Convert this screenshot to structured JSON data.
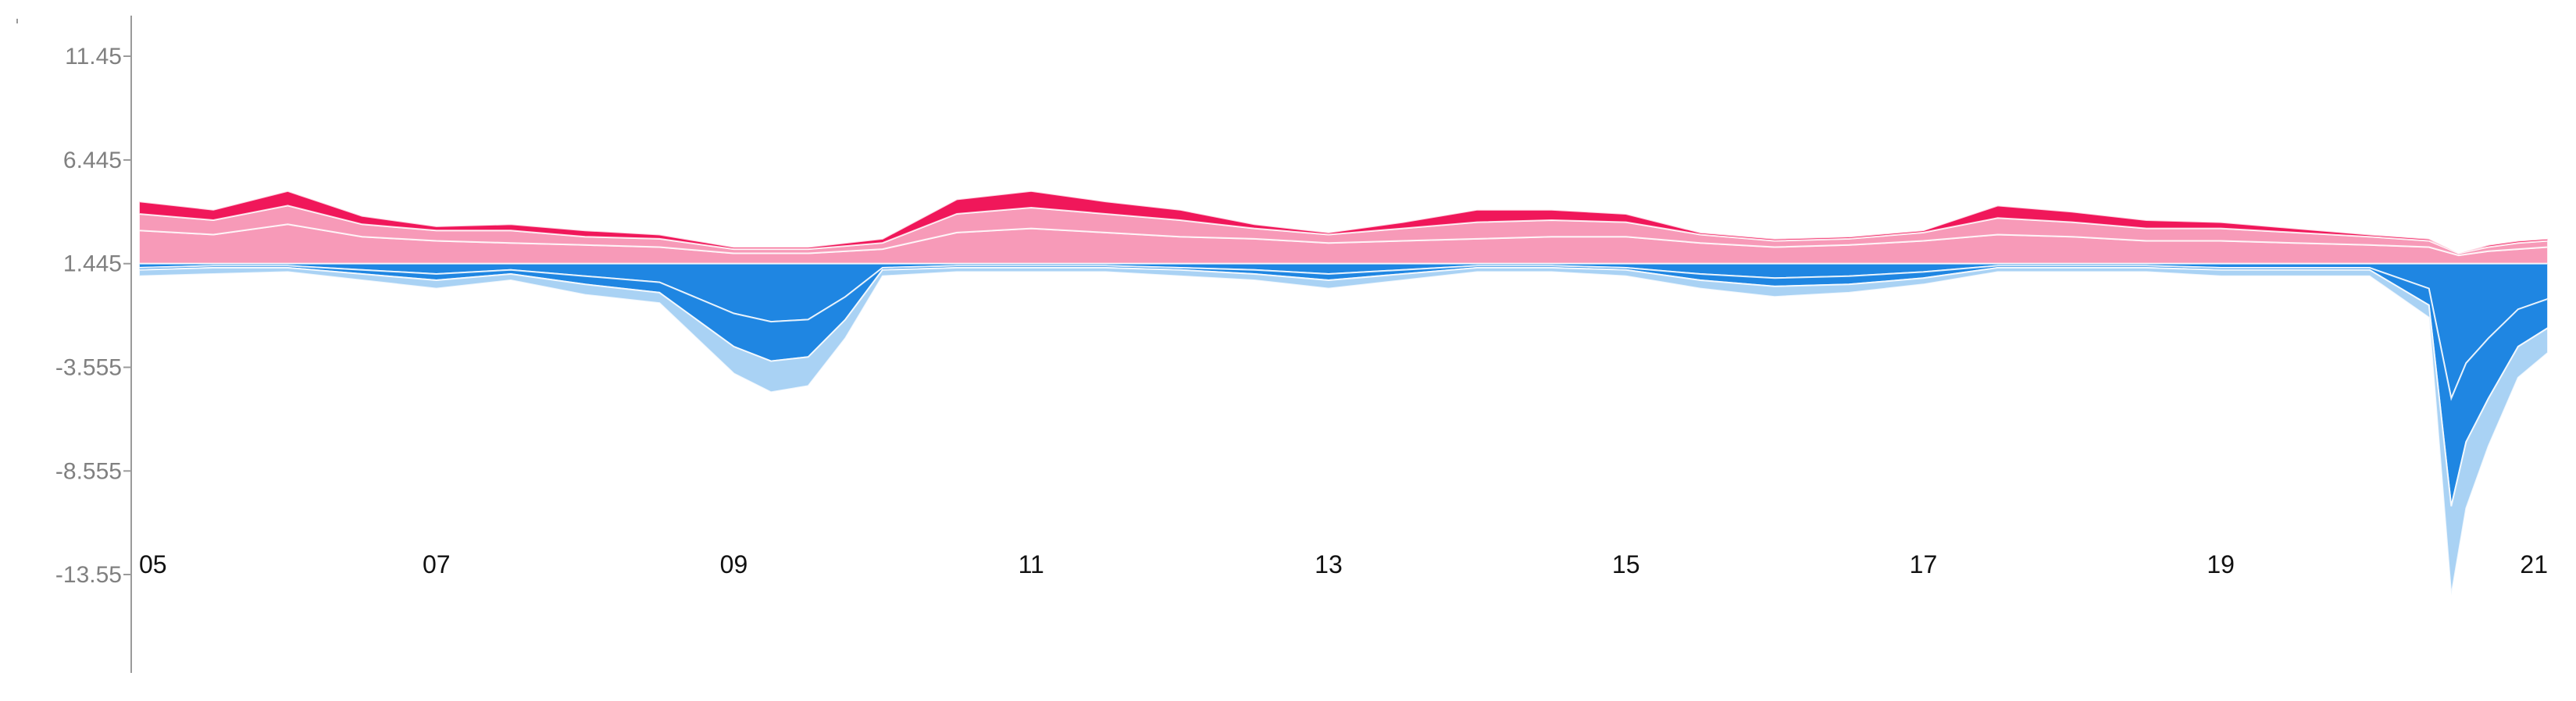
{
  "chart_data": {
    "type": "area",
    "title": "",
    "xlabel": "",
    "ylabel": "",
    "stacked": true,
    "x_tick_labels": [
      "05",
      "07",
      "09",
      "11",
      "13",
      "15",
      "17",
      "19",
      "21"
    ],
    "x_tick_values": [
      5,
      7,
      9,
      11,
      13,
      15,
      17,
      19,
      21
    ],
    "y_tick_labels": [
      "11.45",
      "6.445",
      "1.445",
      "-3.555",
      "-8.555",
      "-13.55"
    ],
    "y_tick_values": [
      11.45,
      6.445,
      1.445,
      -3.555,
      -8.555,
      -13.55
    ],
    "xlim": [
      5,
      21.2
    ],
    "ylim": [
      -15.8,
      13.2
    ],
    "grid": false,
    "legend": "none",
    "colors": {
      "positive_dark": "#f0175a",
      "positive_light": "#f79ab8",
      "negative_dark": "#1f86e2",
      "negative_light": "#a9d2f4",
      "layer_separator": "#ffffff",
      "axis": "#9a9a9a"
    },
    "series": [
      {
        "sign": "positive",
        "x": [
          5.0,
          5.5,
          6.0,
          6.5,
          7.0,
          7.5,
          8.0,
          8.5,
          9.0,
          9.5,
          10.0,
          10.5,
          11.0,
          11.5,
          12.0,
          12.5,
          13.0,
          13.5,
          14.0,
          14.5,
          15.0,
          15.5,
          16.0,
          16.5,
          17.0,
          17.5,
          18.0,
          18.5,
          19.0,
          19.5,
          20.0,
          20.4,
          20.6,
          20.8,
          21.0,
          21.2
        ],
        "values": [
          1.6,
          1.4,
          1.9,
          1.3,
          1.1,
          1.0,
          0.9,
          0.8,
          0.5,
          0.5,
          0.7,
          1.5,
          1.7,
          1.5,
          1.3,
          1.2,
          1.0,
          1.1,
          1.2,
          1.3,
          1.3,
          1.0,
          0.8,
          0.9,
          1.1,
          1.4,
          1.3,
          1.1,
          1.1,
          1.0,
          0.9,
          0.8,
          0.4,
          0.6,
          0.7,
          0.8
        ]
      },
      {
        "sign": "positive",
        "x": [
          5.0,
          5.5,
          6.0,
          6.5,
          7.0,
          7.5,
          8.0,
          8.5,
          9.0,
          9.5,
          10.0,
          10.5,
          11.0,
          11.5,
          12.0,
          12.5,
          13.0,
          13.5,
          14.0,
          14.5,
          15.0,
          15.5,
          16.0,
          16.5,
          17.0,
          17.5,
          18.0,
          18.5,
          19.0,
          19.5,
          20.0,
          20.4,
          20.6,
          20.8,
          21.0,
          21.2
        ],
        "values": [
          0.8,
          0.7,
          0.9,
          0.6,
          0.5,
          0.6,
          0.4,
          0.4,
          0.2,
          0.2,
          0.3,
          0.9,
          1.0,
          0.9,
          0.8,
          0.5,
          0.4,
          0.6,
          0.8,
          0.8,
          0.7,
          0.4,
          0.3,
          0.3,
          0.4,
          0.8,
          0.7,
          0.6,
          0.6,
          0.5,
          0.4,
          0.3,
          0.1,
          0.2,
          0.3,
          0.3
        ]
      },
      {
        "sign": "positive",
        "x": [
          5.0,
          5.5,
          6.0,
          6.5,
          7.0,
          7.5,
          8.0,
          8.5,
          9.0,
          9.5,
          10.0,
          10.5,
          11.0,
          11.5,
          12.0,
          12.5,
          13.0,
          13.5,
          14.0,
          14.5,
          15.0,
          15.5,
          16.0,
          16.5,
          17.0,
          17.5,
          18.0,
          18.5,
          19.0,
          19.5,
          20.0,
          20.4,
          20.6,
          20.8,
          21.0,
          21.2
        ],
        "values": [
          0.6,
          0.5,
          0.7,
          0.4,
          0.2,
          0.3,
          0.3,
          0.2,
          0.1,
          0.1,
          0.2,
          0.7,
          0.8,
          0.6,
          0.5,
          0.2,
          0.1,
          0.3,
          0.6,
          0.5,
          0.4,
          0.1,
          0.1,
          0.1,
          0.1,
          0.6,
          0.5,
          0.4,
          0.3,
          0.2,
          0.1,
          0.1,
          0.0,
          0.1,
          0.1,
          0.1
        ]
      },
      {
        "sign": "negative",
        "x": [
          5.0,
          5.5,
          6.0,
          6.5,
          7.0,
          7.5,
          8.0,
          8.5,
          9.0,
          9.25,
          9.5,
          9.75,
          10.0,
          10.5,
          11.0,
          11.5,
          12.0,
          12.5,
          13.0,
          13.5,
          14.0,
          14.5,
          15.0,
          15.5,
          16.0,
          16.5,
          17.0,
          17.5,
          18.0,
          18.5,
          19.0,
          19.5,
          20.0,
          20.4,
          20.55,
          20.65,
          20.8,
          21.0,
          21.2
        ],
        "values": [
          -0.2,
          -0.1,
          -0.1,
          -0.3,
          -0.5,
          -0.3,
          -0.6,
          -0.9,
          -2.4,
          -2.8,
          -2.7,
          -1.6,
          -0.2,
          -0.1,
          -0.1,
          -0.1,
          -0.2,
          -0.3,
          -0.5,
          -0.3,
          -0.1,
          -0.1,
          -0.2,
          -0.5,
          -0.7,
          -0.6,
          -0.4,
          -0.1,
          -0.1,
          -0.1,
          -0.2,
          -0.2,
          -0.2,
          -1.2,
          -6.5,
          -4.8,
          -3.6,
          -2.2,
          -1.7
        ]
      },
      {
        "sign": "negative",
        "x": [
          5.0,
          5.5,
          6.0,
          6.5,
          7.0,
          7.5,
          8.0,
          8.5,
          9.0,
          9.25,
          9.5,
          9.75,
          10.0,
          10.5,
          11.0,
          11.5,
          12.0,
          12.5,
          13.0,
          13.5,
          14.0,
          14.5,
          15.0,
          15.5,
          16.0,
          16.5,
          17.0,
          17.5,
          18.0,
          18.5,
          19.0,
          19.5,
          20.0,
          20.4,
          20.55,
          20.65,
          20.8,
          21.0,
          21.2
        ],
        "values": [
          -0.1,
          -0.1,
          -0.1,
          -0.2,
          -0.3,
          -0.2,
          -0.4,
          -0.5,
          -1.6,
          -1.9,
          -1.8,
          -1.1,
          -0.1,
          -0.1,
          -0.1,
          -0.1,
          -0.1,
          -0.2,
          -0.3,
          -0.2,
          -0.1,
          -0.1,
          -0.1,
          -0.3,
          -0.4,
          -0.4,
          -0.3,
          -0.1,
          -0.1,
          -0.1,
          -0.1,
          -0.1,
          -0.1,
          -0.8,
          -5.2,
          -3.8,
          -2.9,
          -1.8,
          -1.4
        ]
      },
      {
        "sign": "negative",
        "x": [
          5.0,
          5.5,
          6.0,
          6.5,
          7.0,
          7.5,
          8.0,
          8.5,
          9.0,
          9.25,
          9.5,
          9.75,
          10.0,
          10.5,
          11.0,
          11.5,
          12.0,
          12.5,
          13.0,
          13.5,
          14.0,
          14.5,
          15.0,
          15.5,
          16.0,
          16.5,
          17.0,
          17.5,
          18.0,
          18.5,
          19.0,
          19.5,
          20.0,
          20.4,
          20.55,
          20.65,
          20.8,
          21.0,
          21.2
        ],
        "values": [
          -0.3,
          -0.3,
          -0.2,
          -0.3,
          -0.4,
          -0.3,
          -0.5,
          -0.5,
          -1.3,
          -1.5,
          -1.4,
          -0.9,
          -0.3,
          -0.2,
          -0.2,
          -0.2,
          -0.3,
          -0.3,
          -0.4,
          -0.3,
          -0.2,
          -0.2,
          -0.3,
          -0.4,
          -0.5,
          -0.4,
          -0.3,
          -0.2,
          -0.2,
          -0.2,
          -0.3,
          -0.3,
          -0.3,
          -0.6,
          -4.3,
          -3.2,
          -2.3,
          -1.5,
          -1.2
        ]
      }
    ]
  }
}
